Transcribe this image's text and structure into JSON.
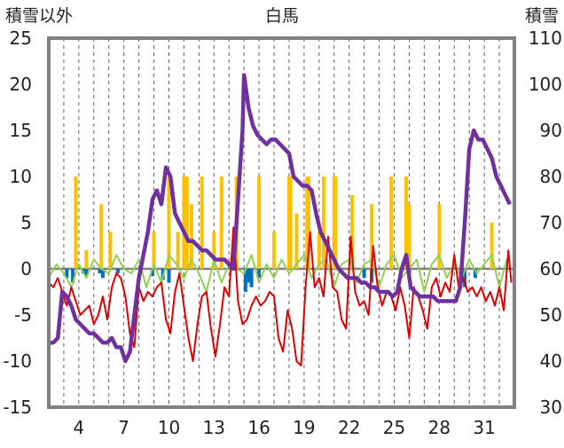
{
  "chart_data": {
    "type": "line",
    "title": "白馬",
    "ylabel_left": "積雪以外",
    "ylabel_right": "積雪",
    "x_ticks": [
      "4",
      "7",
      "10",
      "13",
      "16",
      "19",
      "22",
      "25",
      "28",
      "31"
    ],
    "x_tick_days": [
      4,
      7,
      10,
      13,
      16,
      19,
      22,
      25,
      28,
      31
    ],
    "xlim": [
      2,
      33
    ],
    "y_left_ticks": [
      "25",
      "20",
      "15",
      "10",
      "5",
      "0",
      "-5",
      "-10",
      "-15"
    ],
    "y_left_lim": [
      -15,
      25
    ],
    "y_right_ticks": [
      "110",
      "100",
      "90",
      "80",
      "70",
      "60",
      "50",
      "40",
      "30"
    ],
    "y_right_lim": [
      30,
      110
    ],
    "grid": "vertical-dashed",
    "colors": {
      "snow_depth": "#7030a0",
      "temperature": "#e00000",
      "precipitation": "#ffc000",
      "wind": "#92d050",
      "negative_bars": "#0070c0",
      "frame": "#808080"
    },
    "series": [
      {
        "key": "snow_depth",
        "axis": "right",
        "x": [
          2.0,
          2.3,
          2.6,
          2.9,
          3.2,
          3.5,
          3.8,
          4.1,
          4.4,
          4.7,
          5.0,
          5.3,
          5.6,
          5.9,
          6.2,
          6.5,
          6.8,
          7.1,
          7.4,
          7.7,
          8.0,
          8.3,
          8.6,
          8.9,
          9.2,
          9.5,
          9.8,
          10.1,
          10.4,
          10.7,
          11.0,
          11.3,
          11.6,
          11.9,
          12.2,
          12.5,
          12.8,
          13.1,
          13.4,
          13.7,
          14.0,
          14.3,
          14.6,
          14.9,
          15.0,
          15.3,
          15.6,
          15.9,
          16.2,
          16.5,
          16.8,
          17.1,
          17.4,
          17.7,
          18.0,
          18.3,
          18.6,
          18.9,
          19.2,
          19.5,
          19.8,
          20.1,
          20.4,
          20.7,
          21.0,
          21.3,
          21.6,
          21.9,
          22.2,
          22.5,
          22.8,
          23.1,
          23.4,
          23.7,
          24.0,
          24.3,
          24.6,
          24.9,
          25.2,
          25.5,
          25.8,
          26.1,
          26.4,
          26.7,
          27.0,
          27.3,
          27.6,
          27.9,
          28.2,
          28.5,
          28.8,
          29.1,
          29.4,
          29.7,
          30.0,
          30.3,
          30.6,
          30.9,
          31.2,
          31.5,
          31.8,
          32.1,
          32.4,
          32.7
        ],
        "values": [
          44,
          44,
          45,
          55,
          54,
          52,
          49,
          48,
          47,
          46,
          46,
          45,
          44,
          44,
          45,
          43,
          43,
          40,
          42,
          50,
          58,
          63,
          68,
          75,
          77,
          74,
          82,
          80,
          72,
          70,
          68,
          66,
          66,
          65,
          64,
          64,
          63,
          62,
          62,
          62,
          61,
          60,
          75,
          90,
          102,
          95,
          91,
          89,
          88,
          87,
          88,
          88,
          87,
          86,
          85,
          80,
          79,
          78,
          78,
          77,
          72,
          68,
          66,
          64,
          62,
          60,
          59,
          58,
          58,
          58,
          57,
          57,
          56,
          56,
          55,
          55,
          55,
          54,
          55,
          60,
          63,
          56,
          55,
          54,
          54,
          54,
          54,
          53,
          53,
          53,
          53,
          53,
          56,
          70,
          86,
          90,
          88,
          88,
          86,
          84,
          80,
          78,
          76,
          74
        ]
      },
      {
        "key": "temperature",
        "axis": "left",
        "x": [
          2.0,
          2.3,
          2.6,
          2.9,
          3.2,
          3.5,
          3.8,
          4.1,
          4.4,
          4.7,
          5.0,
          5.3,
          5.6,
          5.9,
          6.2,
          6.5,
          6.8,
          7.1,
          7.4,
          7.7,
          8.0,
          8.3,
          8.6,
          8.9,
          9.2,
          9.5,
          9.8,
          10.1,
          10.4,
          10.7,
          11.0,
          11.3,
          11.6,
          11.9,
          12.2,
          12.5,
          12.8,
          13.1,
          13.4,
          13.7,
          14.0,
          14.3,
          14.6,
          14.9,
          15.2,
          15.5,
          15.8,
          16.1,
          16.4,
          16.7,
          17.0,
          17.3,
          17.6,
          17.9,
          18.2,
          18.5,
          18.8,
          19.1,
          19.4,
          19.7,
          20.0,
          20.3,
          20.6,
          20.9,
          21.2,
          21.5,
          21.8,
          22.1,
          22.4,
          22.7,
          23.0,
          23.3,
          23.6,
          23.9,
          24.2,
          24.5,
          24.8,
          25.1,
          25.4,
          25.7,
          26.0,
          26.3,
          26.6,
          26.9,
          27.2,
          27.5,
          27.8,
          28.1,
          28.4,
          28.7,
          29.0,
          29.3,
          29.6,
          29.9,
          30.2,
          30.5,
          30.8,
          31.1,
          31.4,
          31.7,
          32.0,
          32.3,
          32.6,
          32.8
        ],
        "values": [
          -1.5,
          -2.0,
          -1.0,
          -2.5,
          -4.0,
          -2.0,
          -3.5,
          -5.0,
          -4.5,
          -4.0,
          -6.0,
          -5.0,
          -3.0,
          -5.5,
          -2.0,
          -0.5,
          -1.0,
          -3.0,
          -7.0,
          -8.5,
          -2.0,
          -3.5,
          -2.5,
          -3.0,
          -2.0,
          -1.5,
          -5.5,
          -7.0,
          -2.5,
          -0.5,
          -4.0,
          -7.5,
          -10.0,
          -6.0,
          -3.0,
          -2.5,
          -6.5,
          -9.5,
          -6.0,
          -2.0,
          -3.0,
          4.5,
          -3.5,
          -6.0,
          -5.5,
          -4.0,
          -3.0,
          -4.0,
          -3.5,
          -2.5,
          -3.0,
          -7.5,
          -9.0,
          -4.5,
          -6.5,
          -10.0,
          -10.5,
          -2.0,
          4.0,
          -2.0,
          -1.0,
          -3.0,
          3.5,
          -2.0,
          -2.5,
          -5.5,
          -6.5,
          3.5,
          -2.5,
          -4.0,
          -3.5,
          -5.0,
          2.5,
          -2.0,
          -4.0,
          -2.5,
          -3.0,
          -4.5,
          -2.0,
          -4.0,
          -7.5,
          -2.0,
          -3.0,
          -4.5,
          -6.5,
          -2.0,
          -1.0,
          -3.0,
          -1.5,
          -2.5,
          1.5,
          -2.0,
          -1.0,
          -2.5,
          -2.0,
          -3.0,
          -2.0,
          -3.5,
          -2.5,
          -4.0,
          -2.0,
          -4.5,
          2.0,
          -1.5
        ]
      },
      {
        "key": "wind",
        "axis": "left",
        "x": [
          2.0,
          2.5,
          3.0,
          3.5,
          4.0,
          4.5,
          5.0,
          5.5,
          6.0,
          6.5,
          7.0,
          7.5,
          8.0,
          8.5,
          9.0,
          9.5,
          10.0,
          10.5,
          11.0,
          11.5,
          12.0,
          12.5,
          13.0,
          13.5,
          14.0,
          14.5,
          15.0,
          15.5,
          16.0,
          16.5,
          17.0,
          17.5,
          18.0,
          18.5,
          19.0,
          19.5,
          20.0,
          20.5,
          21.0,
          21.5,
          22.0,
          22.5,
          23.0,
          23.5,
          24.0,
          24.5,
          25.0,
          25.5,
          26.0,
          26.5,
          27.0,
          27.5,
          28.0,
          28.5,
          29.0,
          29.5,
          30.0,
          30.5,
          31.0,
          31.5,
          32.0,
          32.5
        ],
        "values": [
          -1.0,
          0.5,
          -0.5,
          -2.0,
          0.5,
          -1.0,
          1.0,
          0.0,
          -0.5,
          1.5,
          0.0,
          -0.5,
          1.0,
          -2.0,
          0.5,
          -1.5,
          1.5,
          0.5,
          -1.0,
          1.0,
          -0.5,
          -2.5,
          1.0,
          -1.5,
          0.5,
          0.0,
          -0.5,
          1.5,
          -1.5,
          0.5,
          -1.0,
          1.0,
          -0.5,
          0.5,
          1.5,
          -1.0,
          0.5,
          1.0,
          -2.0,
          0.5,
          1.0,
          -1.5,
          0.5,
          1.0,
          -2.0,
          0.5,
          1.5,
          -1.0,
          0.0,
          1.0,
          -2.5,
          0.5,
          1.5,
          -1.0,
          0.5,
          -1.0,
          1.0,
          -0.5,
          0.5,
          1.5,
          -2.0,
          1.0
        ]
      },
      {
        "key": "precipitation",
        "axis": "left",
        "type": "bar",
        "x": [
          3.8,
          4.5,
          5.5,
          6.1,
          9.0,
          10.0,
          10.6,
          11.0,
          11.1,
          11.2,
          11.5,
          12.2,
          13.0,
          13.5,
          14.5,
          16.0,
          17.0,
          18.0,
          18.1,
          18.5,
          19.2,
          19.3,
          20.0,
          20.3,
          21.0,
          21.1,
          22.2,
          23.5,
          24.8,
          25.8,
          26.0,
          28.0,
          31.5
        ],
        "values": [
          10,
          2,
          7,
          4,
          4,
          10,
          4,
          10,
          10,
          10,
          7,
          10,
          4,
          10,
          10,
          10,
          4,
          10,
          10,
          6,
          10,
          10,
          4,
          10,
          10,
          10,
          8,
          7,
          10,
          10,
          7,
          7,
          5
        ]
      },
      {
        "key": "negative_bars",
        "axis": "left",
        "type": "bar",
        "x": [
          3.2,
          3.6,
          4.3,
          4.5,
          5.4,
          5.6,
          6.6,
          8.9,
          9.6,
          10.0,
          15.1,
          15.3,
          15.5,
          16.0,
          23.0,
          23.5,
          26.0,
          29.5,
          29.7,
          30.4
        ],
        "values": [
          -1.0,
          -1.5,
          -0.5,
          -0.8,
          -0.5,
          -1.0,
          -0.5,
          -0.8,
          -1.2,
          -1.5,
          -2.5,
          -1.5,
          -2.0,
          -1.0,
          -1.0,
          -1.5,
          -1.2,
          -1.5,
          -2.0,
          -1.0
        ]
      }
    ]
  }
}
